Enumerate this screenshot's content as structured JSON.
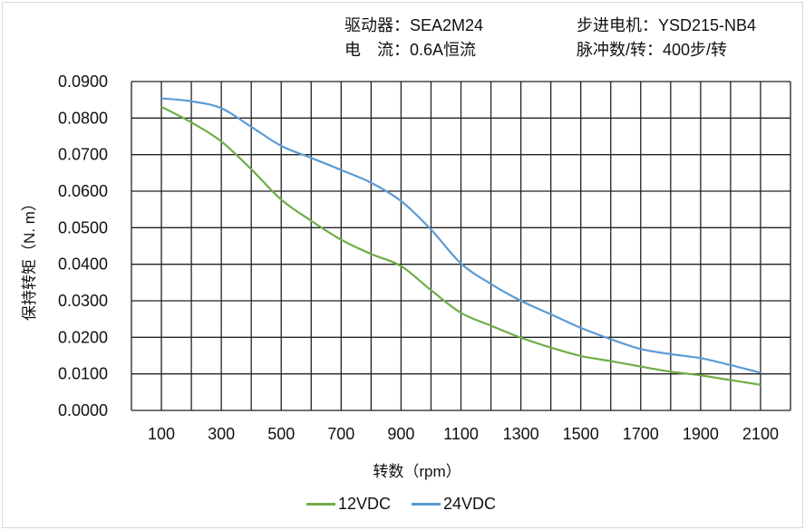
{
  "header": {
    "driver": "驱动器：SEA2M24",
    "current": "电　流：0.6A恒流",
    "motor": "步进电机：YSD215-NB4",
    "pulses": "脉冲数/转：400步/转"
  },
  "chart_data": {
    "type": "line",
    "title": "",
    "xlabel": "转数（rpm）",
    "ylabel": "保持转矩（N. m）",
    "xlim": [
      0,
      2200
    ],
    "ylim": [
      0,
      0.09
    ],
    "grid": true,
    "legend_position": "bottom",
    "x_tick_labels": [
      "100",
      "300",
      "500",
      "700",
      "900",
      "1100",
      "1300",
      "1500",
      "1700",
      "1900",
      "2100"
    ],
    "y_tick_labels": [
      "0.0000",
      "0.0100",
      "0.0200",
      "0.0300",
      "0.0400",
      "0.0500",
      "0.0600",
      "0.0700",
      "0.0800",
      "0.0900"
    ],
    "x": [
      100,
      200,
      300,
      400,
      500,
      600,
      700,
      800,
      900,
      1000,
      1100,
      1200,
      1300,
      1400,
      1500,
      1600,
      1700,
      1800,
      1900,
      2000,
      2100
    ],
    "series": [
      {
        "name": "12VDC",
        "color": "#70ad47",
        "values": [
          0.0831,
          0.0788,
          0.0736,
          0.066,
          0.0577,
          0.0519,
          0.0467,
          0.0428,
          0.0395,
          0.0329,
          0.0267,
          0.0232,
          0.0199,
          0.0172,
          0.0149,
          0.0135,
          0.012,
          0.0106,
          0.0096,
          0.0083,
          0.007
        ]
      },
      {
        "name": "24VDC",
        "color": "#5b9bd5",
        "values": [
          0.0854,
          0.0846,
          0.0827,
          0.0776,
          0.0724,
          0.0691,
          0.0658,
          0.0623,
          0.0573,
          0.0495,
          0.0402,
          0.0346,
          0.03,
          0.0263,
          0.0226,
          0.0195,
          0.0168,
          0.0154,
          0.0143,
          0.0124,
          0.0103
        ]
      }
    ]
  }
}
